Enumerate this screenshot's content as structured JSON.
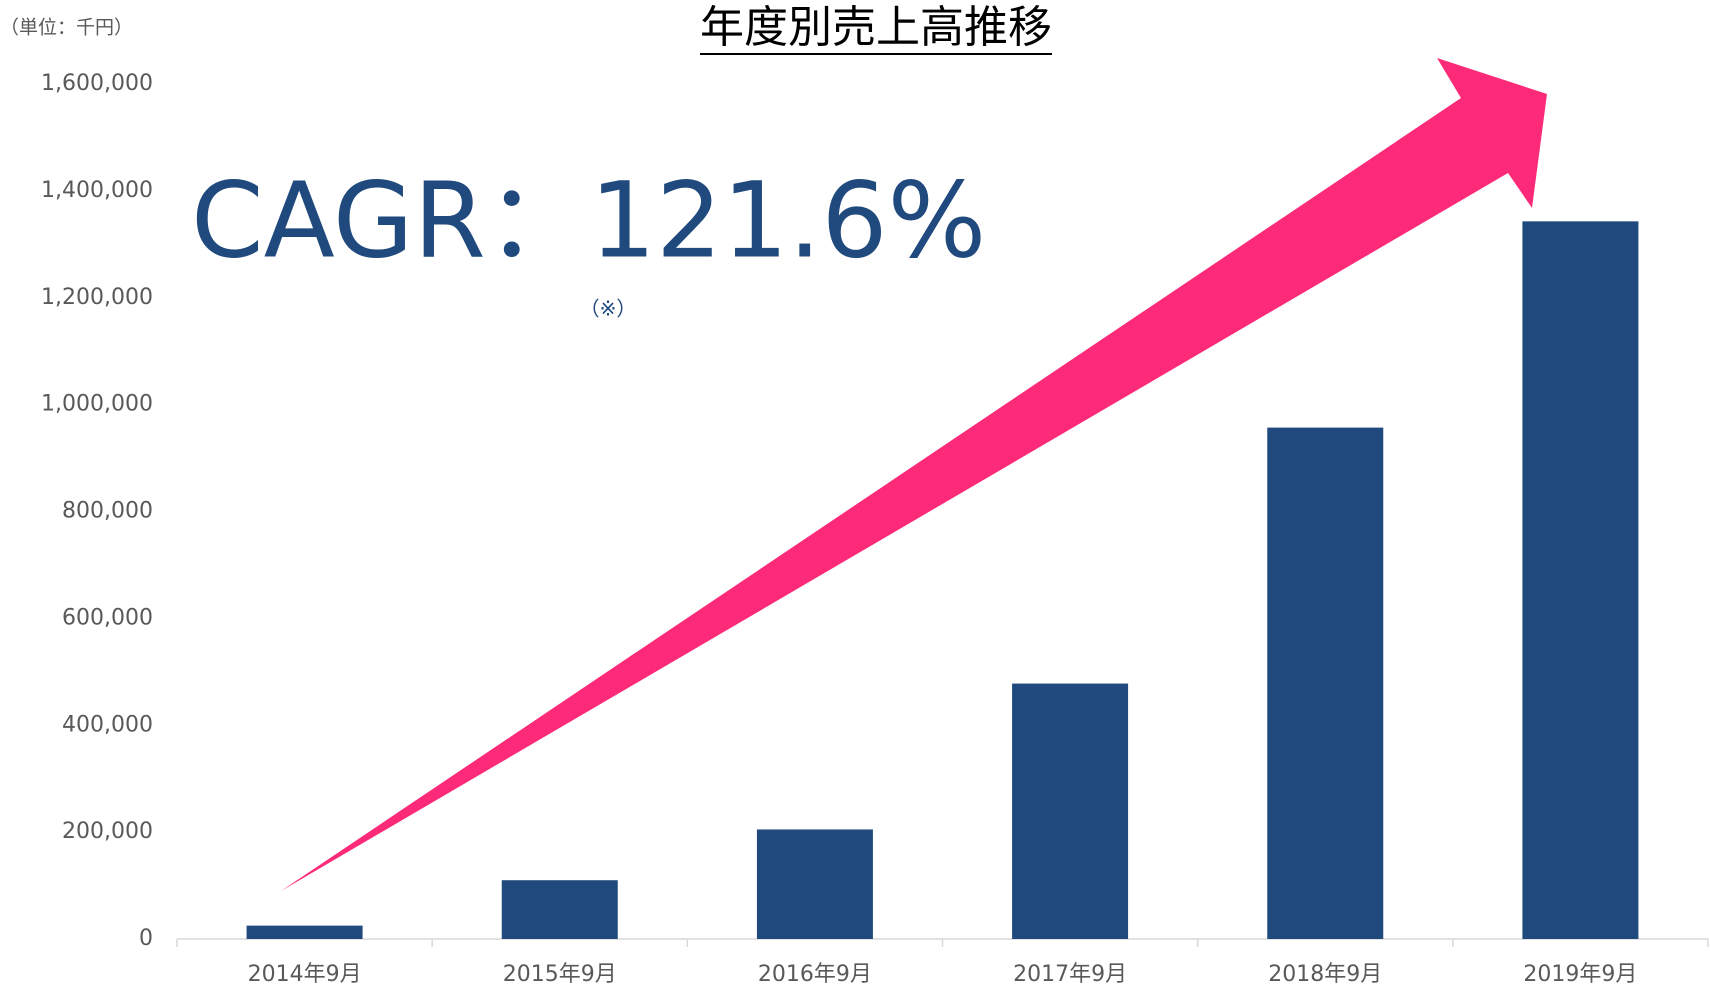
{
  "chart_data": {
    "type": "bar",
    "title": "年度別売上高推移",
    "unit_label": "（単位：千円）",
    "annotation": "CAGR：121.6%",
    "footnote_mark": "（※）",
    "categories": [
      "2014年9月",
      "2015年9月",
      "2016年9月",
      "2017年9月",
      "2018年9月",
      "2019年9月"
    ],
    "values": [
      25000,
      110000,
      205000,
      478000,
      957000,
      1343000
    ],
    "color": "#204a7e",
    "ylim": [
      0,
      1600000
    ],
    "yticks": [
      0,
      {
        "value": 200000,
        "label": "200,000"
      },
      {
        "value": 400000,
        "label": "400,000"
      },
      {
        "value": 600000,
        "label": "600,000"
      },
      {
        "value": 800000,
        "label": "800,000"
      },
      {
        "value": 1000000,
        "label": "1,000,000"
      },
      {
        "value": 1200000,
        "label": "1,200,000"
      },
      {
        "value": 1400000,
        "label": "1,400,000"
      },
      {
        "value": 1600000,
        "label": "1,600,000"
      }
    ],
    "grid": false
  }
}
